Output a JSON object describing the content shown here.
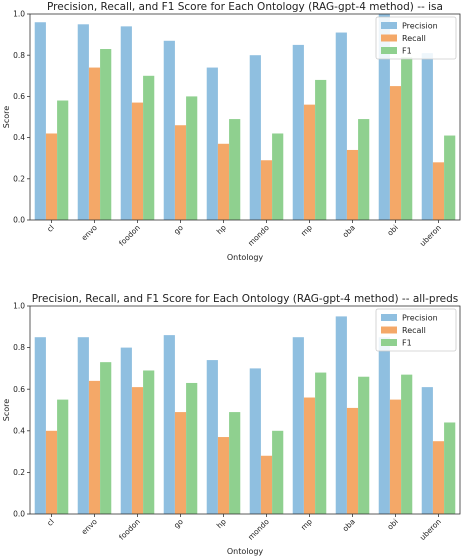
{
  "chart_data": [
    {
      "type": "bar",
      "title": "Precision, Recall, and F1 Score for Each Ontology (RAG-gpt-4 method) -- isa",
      "xlabel": "Ontology",
      "ylabel": "Score",
      "ylim": [
        0,
        1.0
      ],
      "yticks": [
        0.0,
        0.2,
        0.4,
        0.6,
        0.8,
        1.0
      ],
      "legend_position": "top-right",
      "grid": false,
      "categories": [
        "cl",
        "envo",
        "foodon",
        "go",
        "hp",
        "mondo",
        "mp",
        "oba",
        "obi",
        "uberon"
      ],
      "series": [
        {
          "name": "Precision",
          "color": "#8fbfe0",
          "values": [
            0.96,
            0.95,
            0.94,
            0.87,
            0.74,
            0.8,
            0.85,
            0.91,
            1.0,
            0.81
          ]
        },
        {
          "name": "Recall",
          "color": "#f4a868",
          "values": [
            0.42,
            0.74,
            0.57,
            0.46,
            0.37,
            0.29,
            0.56,
            0.34,
            0.65,
            0.28
          ]
        },
        {
          "name": "F1",
          "color": "#8fd08f",
          "values": [
            0.58,
            0.83,
            0.7,
            0.6,
            0.49,
            0.42,
            0.68,
            0.49,
            0.79,
            0.41
          ]
        }
      ]
    },
    {
      "type": "bar",
      "title": "Precision, Recall, and F1 Score for Each Ontology (RAG-gpt-4 method) -- all-preds",
      "xlabel": "Ontology",
      "ylabel": "Score",
      "ylim": [
        0,
        1.0
      ],
      "yticks": [
        0.0,
        0.2,
        0.4,
        0.6,
        0.8,
        1.0
      ],
      "legend_position": "top-right",
      "grid": false,
      "categories": [
        "cl",
        "envo",
        "foodon",
        "go",
        "hp",
        "mondo",
        "mp",
        "oba",
        "obi",
        "uberon"
      ],
      "series": [
        {
          "name": "Precision",
          "color": "#8fbfe0",
          "values": [
            0.85,
            0.85,
            0.8,
            0.86,
            0.74,
            0.7,
            0.85,
            0.95,
            0.85,
            0.61
          ]
        },
        {
          "name": "Recall",
          "color": "#f4a868",
          "values": [
            0.4,
            0.64,
            0.61,
            0.49,
            0.37,
            0.28,
            0.56,
            0.51,
            0.55,
            0.35
          ]
        },
        {
          "name": "F1",
          "color": "#8fd08f",
          "values": [
            0.55,
            0.73,
            0.69,
            0.63,
            0.49,
            0.4,
            0.68,
            0.66,
            0.67,
            0.44
          ]
        }
      ]
    }
  ]
}
